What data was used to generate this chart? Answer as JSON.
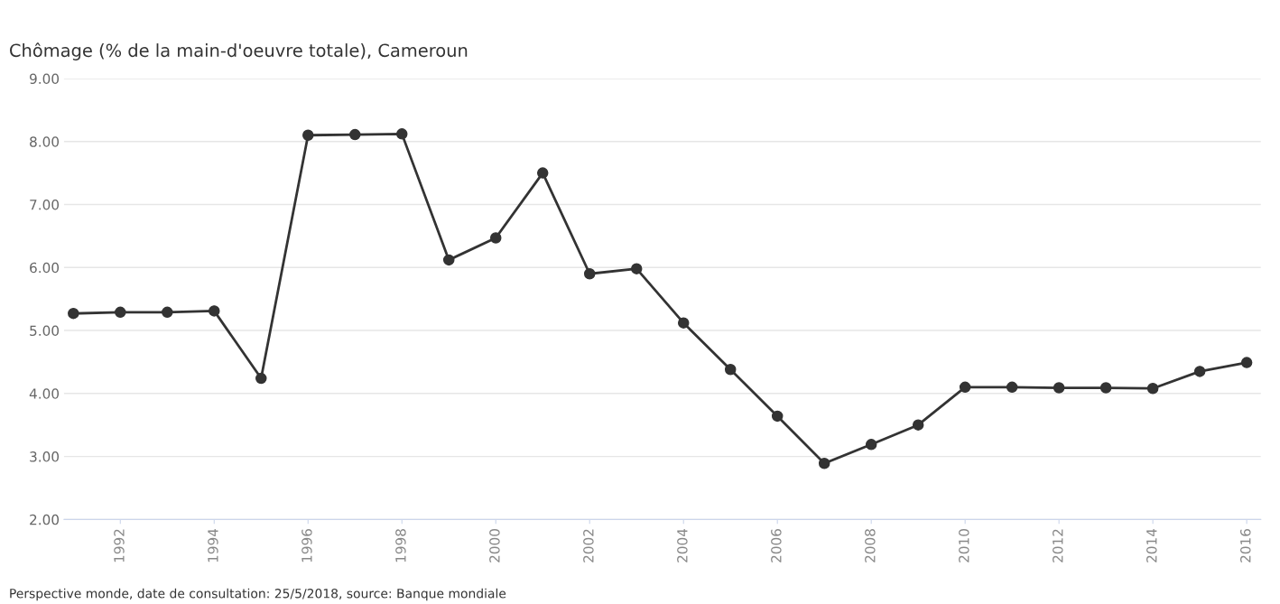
{
  "chart_data": {
    "type": "line",
    "title": "Chômage (% de la main-d'oeuvre totale), Cameroun",
    "x": [
      1991,
      1992,
      1993,
      1994,
      1995,
      1996,
      1997,
      1998,
      1999,
      2000,
      2001,
      2002,
      2003,
      2004,
      2005,
      2006,
      2007,
      2008,
      2009,
      2010,
      2011,
      2012,
      2013,
      2014,
      2015,
      2016
    ],
    "series": [
      {
        "color": "#333333",
        "values": [
          5.27,
          5.29,
          5.29,
          5.31,
          4.24,
          8.1,
          8.11,
          8.12,
          6.12,
          6.47,
          7.5,
          5.9,
          5.98,
          5.12,
          4.38,
          3.64,
          2.89,
          3.19,
          3.5,
          4.1,
          4.1,
          4.09,
          4.09,
          4.08,
          4.35,
          4.49
        ]
      }
    ],
    "xlim": [
      1990.8,
      2016.3
    ],
    "xticks": [
      1992,
      1994,
      1996,
      1998,
      2000,
      2002,
      2004,
      2006,
      2008,
      2010,
      2012,
      2014,
      2016
    ],
    "ylim": [
      2,
      9
    ],
    "yticks": [
      {
        "value": 2,
        "label": "2.00"
      },
      {
        "value": 3,
        "label": "3.00"
      },
      {
        "value": 4,
        "label": "4.00"
      },
      {
        "value": 5,
        "label": "5.00"
      },
      {
        "value": 6,
        "label": "6.00"
      },
      {
        "value": 7,
        "label": "7.00"
      },
      {
        "value": 8,
        "label": "8.00"
      },
      {
        "value": 9,
        "label": "9.00"
      }
    ],
    "grid": "y",
    "marker": "circle",
    "line_style": "solid",
    "annotations": [
      "Perspective monde, date de consultation: 25/5/2018, source: Banque mondiale"
    ]
  }
}
